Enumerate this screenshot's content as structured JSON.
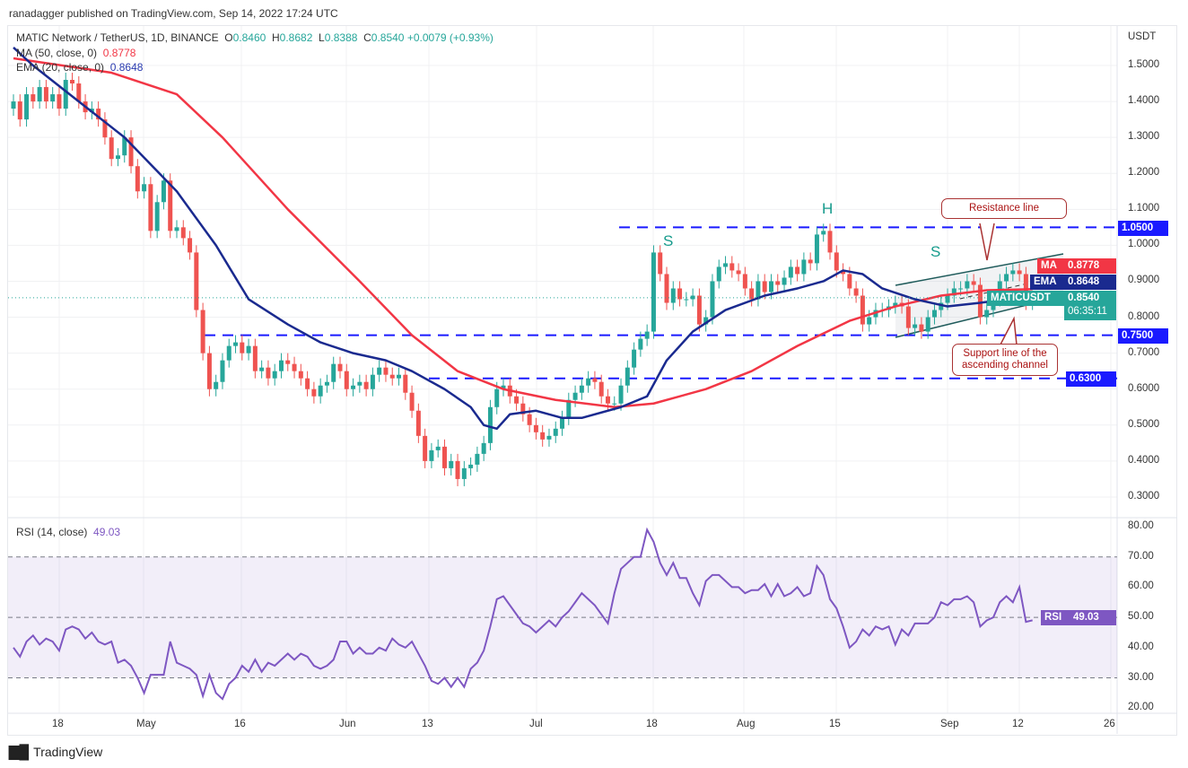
{
  "header": {
    "published": "ranadagger published on TradingView.com, Sep 14, 2022 17:24 UTC"
  },
  "legend": {
    "symbol": "MATIC Network / TetherUS, 1D, BINANCE",
    "o_label": "O",
    "o": "0.8460",
    "h_label": "H",
    "h": "0.8682",
    "l_label": "L",
    "l": "0.8388",
    "c_label": "C",
    "c": "0.8540",
    "change": "+0.0079 (+0.93%)",
    "ma_label": "MA (50, close, 0)",
    "ma_value": "0.8778",
    "ema_label": "EMA (20, close, 0)",
    "ema_value": "0.8648",
    "rsi_label": "RSI (14, close)",
    "rsi_value": "49.03"
  },
  "axis": {
    "currency": "USDT",
    "price_ticks": [
      "1.5000",
      "1.4000",
      "1.3000",
      "1.2000",
      "1.1000",
      "1.0000",
      "0.9000",
      "0.8000",
      "0.7000",
      "0.6000",
      "0.5000",
      "0.4000",
      "0.3000"
    ],
    "rsi_ticks": [
      "80.00",
      "70.00",
      "60.00",
      "50.00",
      "40.00",
      "30.00",
      "20.00"
    ],
    "time_ticks": [
      "18",
      "May",
      "16",
      "Jun",
      "13",
      "Jul",
      "18",
      "Aug",
      "15",
      "Sep",
      "12",
      "26"
    ]
  },
  "badges": {
    "ma_tag": "MA",
    "ma_val": "0.8778",
    "ema_tag": "EMA",
    "ema_val": "0.8648",
    "sym_tag": "MATICUSDT",
    "sym_val": "0.8540",
    "countdown": "06:35:11",
    "l1050": "1.0500",
    "l750": "0.7500",
    "l630": "0.6300",
    "rsi_tag": "RSI",
    "rsi_val": "49.03"
  },
  "annotations": {
    "resistance": "Resistance line",
    "support": "Support line of the ascending channel",
    "s1": "S",
    "h": "H",
    "s2": "S"
  },
  "footer": {
    "brand": "TradingView"
  },
  "colors": {
    "up": "#26a69a",
    "down": "#ef5350",
    "ma": "#f23645",
    "ema": "#1a2a8f",
    "rsi": "#7e57c2",
    "level": "#1a1aff"
  },
  "chart_data": {
    "type": "candlestick",
    "title": "MATIC Network / TetherUS, 1D, BINANCE",
    "start_date": "2022-04-11",
    "end_date": "2022-09-14",
    "ylim": [
      0.27,
      1.62
    ],
    "close": [
      1.4,
      1.35,
      1.42,
      1.4,
      1.44,
      1.4,
      1.42,
      1.38,
      1.46,
      1.45,
      1.4,
      1.37,
      1.38,
      1.35,
      1.3,
      1.24,
      1.25,
      1.3,
      1.22,
      1.15,
      1.17,
      1.04,
      1.12,
      1.18,
      1.04,
      1.05,
      1.02,
      0.98,
      0.82,
      0.7,
      0.6,
      0.62,
      0.68,
      0.72,
      0.73,
      0.7,
      0.72,
      0.65,
      0.66,
      0.63,
      0.65,
      0.68,
      0.67,
      0.65,
      0.63,
      0.6,
      0.58,
      0.61,
      0.62,
      0.67,
      0.65,
      0.6,
      0.61,
      0.62,
      0.6,
      0.64,
      0.66,
      0.64,
      0.63,
      0.64,
      0.59,
      0.54,
      0.47,
      0.4,
      0.43,
      0.44,
      0.38,
      0.4,
      0.35,
      0.38,
      0.39,
      0.42,
      0.45,
      0.55,
      0.6,
      0.61,
      0.58,
      0.56,
      0.53,
      0.5,
      0.48,
      0.46,
      0.47,
      0.49,
      0.52,
      0.57,
      0.59,
      0.61,
      0.63,
      0.62,
      0.58,
      0.56,
      0.56,
      0.61,
      0.66,
      0.71,
      0.74,
      0.76,
      0.98,
      0.92,
      0.84,
      0.88,
      0.85,
      0.85,
      0.86,
      0.78,
      0.8,
      0.9,
      0.94,
      0.95,
      0.93,
      0.92,
      0.88,
      0.85,
      0.9,
      0.87,
      0.9,
      0.89,
      0.91,
      0.94,
      0.92,
      0.96,
      0.95,
      1.03,
      1.04,
      0.98,
      0.93,
      0.92,
      0.88,
      0.86,
      0.78,
      0.8,
      0.82,
      0.82,
      0.83,
      0.84,
      0.83,
      0.77,
      0.78,
      0.76,
      0.8,
      0.82,
      0.84,
      0.86,
      0.88,
      0.88,
      0.9,
      0.89,
      0.8,
      0.82,
      0.85,
      0.9,
      0.92,
      0.93,
      0.92,
      0.84,
      0.854
    ],
    "first_open": 1.38,
    "ma50": [
      [
        0,
        1.52
      ],
      [
        15,
        1.48
      ],
      [
        25,
        1.42
      ],
      [
        32,
        1.3
      ],
      [
        42,
        1.1
      ],
      [
        53,
        0.9
      ],
      [
        61,
        0.75
      ],
      [
        68,
        0.65
      ],
      [
        75,
        0.6
      ],
      [
        83,
        0.57
      ],
      [
        92,
        0.55
      ],
      [
        98,
        0.56
      ],
      [
        106,
        0.6
      ],
      [
        113,
        0.65
      ],
      [
        120,
        0.72
      ],
      [
        128,
        0.79
      ],
      [
        135,
        0.83
      ],
      [
        142,
        0.86
      ],
      [
        149,
        0.875
      ],
      [
        156,
        0.878
      ]
    ],
    "ema20": [
      [
        0,
        1.55
      ],
      [
        3,
        1.5
      ],
      [
        10,
        1.4
      ],
      [
        17,
        1.3
      ],
      [
        25,
        1.15
      ],
      [
        31,
        1.0
      ],
      [
        36,
        0.85
      ],
      [
        42,
        0.78
      ],
      [
        47,
        0.73
      ],
      [
        52,
        0.7
      ],
      [
        57,
        0.68
      ],
      [
        61,
        0.65
      ],
      [
        66,
        0.6
      ],
      [
        70,
        0.55
      ],
      [
        72,
        0.5
      ],
      [
        74,
        0.49
      ],
      [
        76,
        0.53
      ],
      [
        80,
        0.54
      ],
      [
        84,
        0.52
      ],
      [
        87,
        0.52
      ],
      [
        93,
        0.55
      ],
      [
        97,
        0.58
      ],
      [
        100,
        0.68
      ],
      [
        104,
        0.76
      ],
      [
        109,
        0.82
      ],
      [
        115,
        0.86
      ],
      [
        120,
        0.88
      ],
      [
        124,
        0.9
      ],
      [
        127,
        0.93
      ],
      [
        130,
        0.92
      ],
      [
        133,
        0.88
      ],
      [
        138,
        0.85
      ],
      [
        143,
        0.83
      ],
      [
        148,
        0.84
      ],
      [
        152,
        0.85
      ],
      [
        156,
        0.865
      ]
    ],
    "levels": [
      1.05,
      0.75,
      0.63
    ],
    "rsi": {
      "period": 14,
      "ylim": [
        20,
        80
      ],
      "bands": [
        70,
        50,
        30
      ],
      "values": [
        40,
        37,
        42,
        44,
        41,
        43,
        42,
        39,
        46,
        47,
        46,
        43,
        45,
        42,
        41,
        42,
        35,
        36,
        34,
        30,
        25,
        31,
        31,
        31,
        42,
        35,
        34,
        33,
        31,
        24,
        31,
        25,
        23,
        28,
        30,
        34,
        32,
        36,
        32,
        35,
        34,
        36,
        38,
        36,
        38,
        37,
        34,
        33,
        34,
        36,
        42,
        42,
        38,
        40,
        38,
        38,
        40,
        39,
        43,
        41,
        40,
        42,
        38,
        34,
        29,
        28,
        30,
        27,
        30,
        27,
        33,
        35,
        39,
        47,
        56,
        57,
        54,
        51,
        48,
        47,
        45,
        47,
        49,
        47,
        50,
        52,
        55,
        58,
        56,
        54,
        51,
        48,
        58,
        66,
        68,
        70,
        70,
        79,
        75,
        68,
        64,
        68,
        63,
        63,
        58,
        54,
        62,
        64,
        64,
        62,
        60,
        60,
        58,
        59,
        59,
        61,
        57,
        61,
        57,
        58,
        60,
        57,
        58,
        67,
        64,
        56,
        53,
        47,
        40,
        42,
        46,
        44,
        47,
        46,
        47,
        41,
        46,
        44,
        48,
        48,
        48,
        50,
        55,
        54,
        56,
        56,
        57,
        55,
        47,
        49,
        50,
        55,
        57,
        55,
        60,
        48.5,
        49.03
      ]
    }
  }
}
